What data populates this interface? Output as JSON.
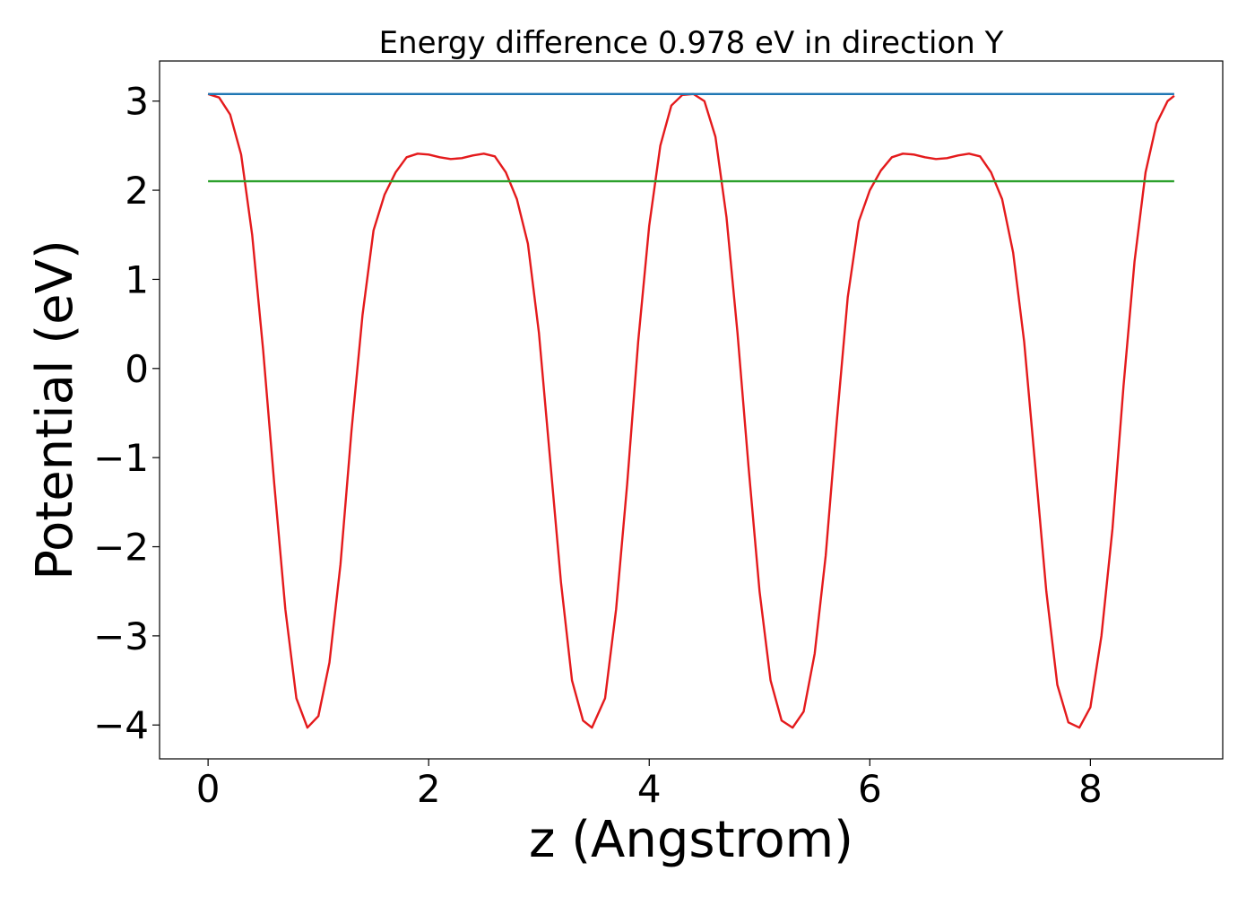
{
  "chart_data": {
    "type": "line",
    "title": "Energy difference 0.978 eV in direction Y",
    "xlabel": "z (Angstrom)",
    "ylabel": "Potential (eV)",
    "xlim": [
      -0.44,
      9.2
    ],
    "ylim": [
      -4.38,
      3.45
    ],
    "x_ticks": [
      0,
      2,
      4,
      6,
      8
    ],
    "x_tick_labels": [
      "0",
      "2",
      "4",
      "6",
      "8"
    ],
    "y_ticks": [
      3,
      2,
      1,
      0,
      -1,
      -2,
      -3,
      -4
    ],
    "y_tick_labels": [
      "3",
      "2",
      "1",
      "0",
      "−1",
      "−2",
      "−3",
      "−4"
    ],
    "grid": false,
    "legend": "none",
    "series": [
      {
        "color": "#e41a1c",
        "points": [
          [
            0.0,
            3.08
          ],
          [
            0.1,
            3.04
          ],
          [
            0.2,
            2.85
          ],
          [
            0.3,
            2.4
          ],
          [
            0.4,
            1.5
          ],
          [
            0.5,
            0.2
          ],
          [
            0.6,
            -1.3
          ],
          [
            0.7,
            -2.7
          ],
          [
            0.8,
            -3.7
          ],
          [
            0.9,
            -4.03
          ],
          [
            1.0,
            -3.9
          ],
          [
            1.1,
            -3.3
          ],
          [
            1.2,
            -2.2
          ],
          [
            1.3,
            -0.7
          ],
          [
            1.4,
            0.6
          ],
          [
            1.5,
            1.55
          ],
          [
            1.6,
            1.95
          ],
          [
            1.7,
            2.2
          ],
          [
            1.8,
            2.37
          ],
          [
            1.9,
            2.41
          ],
          [
            2.0,
            2.4
          ],
          [
            2.1,
            2.37
          ],
          [
            2.2,
            2.35
          ],
          [
            2.3,
            2.36
          ],
          [
            2.4,
            2.39
          ],
          [
            2.5,
            2.41
          ],
          [
            2.6,
            2.38
          ],
          [
            2.7,
            2.2
          ],
          [
            2.8,
            1.9
          ],
          [
            2.9,
            1.4
          ],
          [
            3.0,
            0.4
          ],
          [
            3.1,
            -1.0
          ],
          [
            3.2,
            -2.4
          ],
          [
            3.3,
            -3.5
          ],
          [
            3.4,
            -3.95
          ],
          [
            3.48,
            -4.03
          ],
          [
            3.6,
            -3.7
          ],
          [
            3.7,
            -2.7
          ],
          [
            3.8,
            -1.3
          ],
          [
            3.9,
            0.3
          ],
          [
            4.0,
            1.6
          ],
          [
            4.1,
            2.5
          ],
          [
            4.2,
            2.95
          ],
          [
            4.3,
            3.07
          ],
          [
            4.4,
            3.08
          ],
          [
            4.5,
            3.0
          ],
          [
            4.6,
            2.6
          ],
          [
            4.7,
            1.7
          ],
          [
            4.8,
            0.4
          ],
          [
            4.9,
            -1.1
          ],
          [
            5.0,
            -2.5
          ],
          [
            5.1,
            -3.5
          ],
          [
            5.2,
            -3.95
          ],
          [
            5.3,
            -4.03
          ],
          [
            5.4,
            -3.85
          ],
          [
            5.5,
            -3.2
          ],
          [
            5.6,
            -2.1
          ],
          [
            5.7,
            -0.6
          ],
          [
            5.8,
            0.8
          ],
          [
            5.9,
            1.65
          ],
          [
            6.0,
            2.0
          ],
          [
            6.1,
            2.22
          ],
          [
            6.2,
            2.37
          ],
          [
            6.3,
            2.41
          ],
          [
            6.4,
            2.4
          ],
          [
            6.5,
            2.37
          ],
          [
            6.6,
            2.35
          ],
          [
            6.7,
            2.36
          ],
          [
            6.8,
            2.39
          ],
          [
            6.9,
            2.41
          ],
          [
            7.0,
            2.38
          ],
          [
            7.1,
            2.2
          ],
          [
            7.2,
            1.9
          ],
          [
            7.3,
            1.3
          ],
          [
            7.4,
            0.3
          ],
          [
            7.5,
            -1.1
          ],
          [
            7.6,
            -2.5
          ],
          [
            7.7,
            -3.55
          ],
          [
            7.8,
            -3.97
          ],
          [
            7.9,
            -4.03
          ],
          [
            8.0,
            -3.8
          ],
          [
            8.1,
            -3.0
          ],
          [
            8.2,
            -1.8
          ],
          [
            8.3,
            -0.2
          ],
          [
            8.4,
            1.2
          ],
          [
            8.5,
            2.2
          ],
          [
            8.6,
            2.75
          ],
          [
            8.7,
            3.0
          ],
          [
            8.76,
            3.06
          ]
        ]
      },
      {
        "color": "#1f77b4",
        "points": [
          [
            0.0,
            3.08
          ],
          [
            8.76,
            3.08
          ]
        ]
      },
      {
        "color": "#2ca02c",
        "points": [
          [
            0.0,
            2.1
          ],
          [
            8.76,
            2.1
          ]
        ]
      }
    ]
  }
}
